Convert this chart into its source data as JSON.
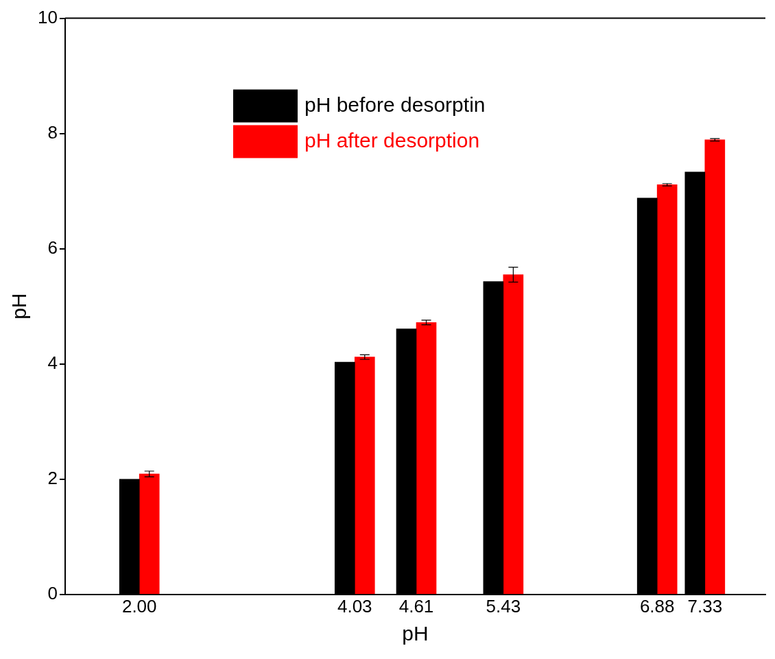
{
  "chart_data": {
    "type": "bar",
    "xlabel": "pH",
    "ylabel": "pH",
    "x": [
      2.0,
      4.03,
      4.61,
      5.43,
      6.88,
      7.33
    ],
    "series": [
      {
        "name": "pH before desorptin",
        "color": "#000000",
        "values": [
          2.0,
          4.03,
          4.61,
          5.43,
          6.88,
          7.33
        ]
      },
      {
        "name": "pH after desorption",
        "color": "#ff0000",
        "values": [
          2.09,
          4.12,
          4.72,
          5.55,
          7.11,
          7.89
        ],
        "errors": [
          0.05,
          0.04,
          0.04,
          0.13,
          0.02,
          0.02
        ]
      }
    ],
    "xlim": [
      1.3,
      7.9
    ],
    "xticks": [
      {
        "value": 2.0,
        "label": "2.00"
      },
      {
        "value": 4.03,
        "label": "4.03"
      },
      {
        "value": 4.61,
        "label": "4.61"
      },
      {
        "value": 5.43,
        "label": "5.43"
      },
      {
        "value": 6.88,
        "label": "6.88"
      },
      {
        "value": 7.33,
        "label": "7.33"
      }
    ],
    "ylim": [
      0,
      10
    ],
    "yticks": [
      0,
      2,
      4,
      6,
      8,
      10
    ],
    "grid": false,
    "legend": "top"
  }
}
